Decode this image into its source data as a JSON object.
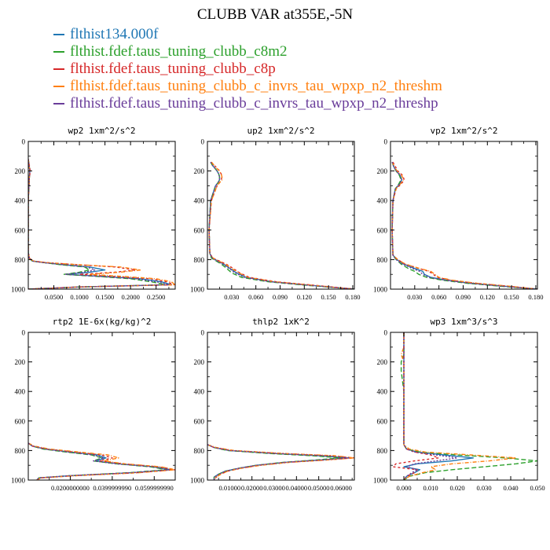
{
  "title": "CLUBB VAR at355E,-5N",
  "colors": [
    "#1f77b4",
    "#2ca02c",
    "#d62728",
    "#ff7f0e",
    "#6a3d9a"
  ],
  "legend": [
    "flthist134.000f",
    "flthist.fdef.taus_tuning_clubb_c8m2",
    "flthist.fdef.taus_tuning_clubb_c8p",
    "flthist.fdef.taus_tuning_clubb_c_invrs_tau_wpxp_n2_threshm",
    "flthist.fdef.taus_tuning_clubb_c_invrs_tau_wpxp_n2_threshp"
  ],
  "chart_data": [
    {
      "type": "line",
      "title": "wp2  1xm^2/s^2",
      "xlim": [
        0,
        0.2874
      ],
      "ylim": [
        0,
        1000
      ],
      "y_inverted": true,
      "xticks": [
        0.05,
        0.1,
        0.15,
        0.2,
        0.25
      ],
      "xtick_labels": [
        "0.0500",
        "0.1000",
        "0.1500",
        "0.2000",
        "0.2500"
      ],
      "yticks": [
        0,
        200,
        400,
        600,
        800,
        1000
      ],
      "ytick_labels": [
        "0",
        "200",
        "400",
        "600",
        "800",
        "1000"
      ],
      "y": [
        120,
        200,
        250,
        400,
        600,
        750,
        790,
        810,
        820,
        835,
        850,
        870,
        885,
        900,
        915,
        930,
        950,
        970,
        985,
        1000
      ],
      "series": [
        {
          "values": [
            0,
            0.003,
            0.002,
            0,
            0,
            0,
            0.002,
            0.008,
            0.03,
            0.07,
            0.12,
            0.15,
            0.12,
            0.075,
            0.15,
            0.22,
            0.26,
            0.28,
            0.1,
            0
          ]
        },
        {
          "values": [
            0,
            0.003,
            0.002,
            0,
            0,
            0,
            0.002,
            0.008,
            0.03,
            0.065,
            0.11,
            0.12,
            0.1,
            0.07,
            0.14,
            0.2,
            0.24,
            0.27,
            0.1,
            0
          ]
        },
        {
          "values": [
            0,
            0.004,
            0.002,
            0,
            0,
            0,
            0.002,
            0.01,
            0.035,
            0.1,
            0.17,
            0.21,
            0.17,
            0.1,
            0.17,
            0.24,
            0.27,
            0.287,
            0.1,
            0
          ]
        },
        {
          "values": [
            0,
            0.003,
            0.002,
            0,
            0,
            0,
            0.002,
            0.01,
            0.035,
            0.1,
            0.18,
            0.22,
            0.18,
            0.12,
            0.19,
            0.25,
            0.28,
            0.287,
            0.1,
            0
          ]
        },
        {
          "values": [
            0,
            0.003,
            0.002,
            0,
            0,
            0,
            0.002,
            0.008,
            0.03,
            0.07,
            0.115,
            0.13,
            0.11,
            0.072,
            0.145,
            0.21,
            0.25,
            0.275,
            0.1,
            0
          ]
        }
      ]
    },
    {
      "type": "line",
      "title": "up2  1xm^2/s^2",
      "xlim": [
        0,
        0.182
      ],
      "ylim": [
        0,
        1000
      ],
      "y_inverted": true,
      "xticks": [
        0.03,
        0.06,
        0.09,
        0.12,
        0.15,
        0.18
      ],
      "xtick_labels": [
        "0.030",
        "0.060",
        "0.090",
        "0.120",
        "0.150",
        "0.180"
      ],
      "yticks": [
        0,
        200,
        400,
        600,
        800,
        1000
      ],
      "ytick_labels": [
        "0",
        "200",
        "400",
        "600",
        "800",
        "1000"
      ],
      "y": [
        140,
        160,
        180,
        200,
        220,
        240,
        260,
        280,
        300,
        400,
        600,
        760,
        790,
        810,
        830,
        860,
        890,
        920,
        950,
        975,
        1000
      ],
      "series": [
        {
          "values": [
            0.004,
            0.006,
            0.009,
            0.012,
            0.014,
            0.015,
            0.015,
            0.013,
            0.01,
            0.004,
            0.002,
            0.003,
            0.006,
            0.013,
            0.02,
            0.028,
            0.036,
            0.048,
            0.08,
            0.13,
            0.182
          ]
        },
        {
          "values": [
            0.004,
            0.006,
            0.009,
            0.012,
            0.014,
            0.015,
            0.015,
            0.013,
            0.01,
            0.004,
            0.002,
            0.003,
            0.005,
            0.011,
            0.017,
            0.024,
            0.03,
            0.042,
            0.075,
            0.125,
            0.182
          ]
        },
        {
          "values": [
            0.005,
            0.008,
            0.012,
            0.015,
            0.017,
            0.018,
            0.017,
            0.015,
            0.012,
            0.005,
            0.002,
            0.003,
            0.007,
            0.015,
            0.023,
            0.032,
            0.04,
            0.052,
            0.085,
            0.135,
            0.182
          ]
        },
        {
          "values": [
            0.005,
            0.008,
            0.011,
            0.015,
            0.017,
            0.018,
            0.018,
            0.015,
            0.012,
            0.005,
            0.002,
            0.003,
            0.007,
            0.014,
            0.022,
            0.03,
            0.039,
            0.05,
            0.083,
            0.133,
            0.182
          ]
        },
        {
          "values": [
            0.004,
            0.006,
            0.009,
            0.012,
            0.014,
            0.015,
            0.015,
            0.013,
            0.01,
            0.004,
            0.002,
            0.003,
            0.006,
            0.012,
            0.019,
            0.027,
            0.034,
            0.046,
            0.078,
            0.128,
            0.182
          ]
        }
      ]
    },
    {
      "type": "line",
      "title": "vp2  1xm^2/s^2",
      "xlim": [
        0,
        0.182
      ],
      "ylim": [
        0,
        1000
      ],
      "y_inverted": true,
      "xticks": [
        0.03,
        0.06,
        0.09,
        0.12,
        0.15,
        0.18
      ],
      "xtick_labels": [
        "0.030",
        "0.060",
        "0.090",
        "0.120",
        "0.150",
        "0.180"
      ],
      "yticks": [
        0,
        200,
        400,
        600,
        800,
        1000
      ],
      "ytick_labels": [
        "0",
        "200",
        "400",
        "600",
        "800",
        "1000"
      ],
      "y": [
        140,
        170,
        200,
        230,
        260,
        290,
        320,
        400,
        600,
        770,
        800,
        830,
        860,
        880,
        900,
        920,
        940,
        960,
        980,
        1000
      ],
      "series": [
        {
          "values": [
            0.002,
            0.004,
            0.007,
            0.012,
            0.014,
            0.011,
            0.006,
            0.003,
            0.002,
            0.003,
            0.008,
            0.016,
            0.03,
            0.04,
            0.042,
            0.05,
            0.07,
            0.1,
            0.14,
            0.182
          ]
        },
        {
          "values": [
            0.002,
            0.004,
            0.007,
            0.011,
            0.013,
            0.01,
            0.006,
            0.003,
            0.002,
            0.003,
            0.007,
            0.013,
            0.022,
            0.03,
            0.035,
            0.045,
            0.065,
            0.095,
            0.135,
            0.182
          ]
        },
        {
          "values": [
            0.003,
            0.006,
            0.009,
            0.015,
            0.017,
            0.013,
            0.007,
            0.003,
            0.002,
            0.003,
            0.009,
            0.018,
            0.035,
            0.048,
            0.053,
            0.058,
            0.075,
            0.105,
            0.145,
            0.182
          ]
        },
        {
          "values": [
            0.002,
            0.005,
            0.008,
            0.014,
            0.016,
            0.012,
            0.007,
            0.003,
            0.002,
            0.003,
            0.009,
            0.018,
            0.036,
            0.05,
            0.055,
            0.06,
            0.077,
            0.107,
            0.147,
            0.182
          ]
        },
        {
          "values": [
            0.002,
            0.004,
            0.007,
            0.012,
            0.014,
            0.011,
            0.006,
            0.003,
            0.002,
            0.003,
            0.007,
            0.015,
            0.027,
            0.036,
            0.04,
            0.048,
            0.068,
            0.098,
            0.138,
            0.182
          ]
        }
      ]
    },
    {
      "type": "line",
      "title": "rtp2  1E-6x(kg/kg)^2",
      "xlim": [
        0,
        0.07
      ],
      "ylim": [
        0,
        1000
      ],
      "y_inverted": true,
      "xticks": [
        0.02,
        0.04,
        0.06
      ],
      "xtick_labels": [
        "0.0200000000",
        "0.0399999990",
        "0.0599999990"
      ],
      "yticks": [
        0,
        200,
        400,
        600,
        800,
        1000
      ],
      "ytick_labels": [
        "0",
        "200",
        "400",
        "600",
        "800",
        "1000"
      ],
      "y": [
        750,
        770,
        790,
        810,
        830,
        850,
        870,
        890,
        910,
        930,
        950,
        970,
        985,
        1000
      ],
      "series": [
        {
          "values": [
            0,
            0.002,
            0.008,
            0.02,
            0.033,
            0.037,
            0.032,
            0.043,
            0.06,
            0.068,
            0.05,
            0.02,
            0.005,
            0.004
          ]
        },
        {
          "values": [
            0,
            0.002,
            0.007,
            0.018,
            0.03,
            0.035,
            0.031,
            0.042,
            0.058,
            0.066,
            0.048,
            0.02,
            0.005,
            0.004
          ]
        },
        {
          "values": [
            0,
            0.002,
            0.009,
            0.022,
            0.035,
            0.04,
            0.034,
            0.045,
            0.062,
            0.07,
            0.052,
            0.022,
            0.006,
            0.004
          ]
        },
        {
          "values": [
            0,
            0.003,
            0.01,
            0.024,
            0.038,
            0.043,
            0.036,
            0.046,
            0.063,
            0.07,
            0.053,
            0.023,
            0.006,
            0.004
          ]
        },
        {
          "values": [
            0,
            0.002,
            0.008,
            0.019,
            0.031,
            0.036,
            0.031,
            0.042,
            0.059,
            0.067,
            0.049,
            0.02,
            0.005,
            0.004
          ]
        }
      ]
    },
    {
      "type": "line",
      "title": "thlp2  1xK^2",
      "xlim": [
        0,
        0.066
      ],
      "ylim": [
        0,
        1000
      ],
      "y_inverted": true,
      "xticks": [
        0.01,
        0.02,
        0.03,
        0.04,
        0.05,
        0.06
      ],
      "xtick_labels": [
        "0.01000",
        "0.02000",
        "0.03000",
        "0.04000",
        "0.05000",
        "0.06000"
      ],
      "yticks": [
        0,
        200,
        400,
        600,
        800,
        1000
      ],
      "ytick_labels": [
        "0",
        "200",
        "400",
        "600",
        "800",
        "1000"
      ],
      "y": [
        760,
        780,
        800,
        820,
        835,
        850,
        865,
        880,
        900,
        920,
        940,
        960,
        980,
        1000
      ],
      "series": [
        {
          "values": [
            0,
            0.003,
            0.01,
            0.03,
            0.05,
            0.063,
            0.05,
            0.035,
            0.022,
            0.014,
            0.008,
            0.005,
            0.003,
            0.003
          ]
        },
        {
          "values": [
            0,
            0.003,
            0.009,
            0.028,
            0.047,
            0.06,
            0.048,
            0.034,
            0.022,
            0.014,
            0.008,
            0.005,
            0.003,
            0.003
          ]
        },
        {
          "values": [
            0,
            0.003,
            0.011,
            0.033,
            0.055,
            0.066,
            0.052,
            0.036,
            0.023,
            0.015,
            0.009,
            0.006,
            0.004,
            0.003
          ]
        },
        {
          "values": [
            0,
            0.004,
            0.012,
            0.035,
            0.057,
            0.066,
            0.053,
            0.037,
            0.024,
            0.015,
            0.009,
            0.006,
            0.004,
            0.003
          ]
        },
        {
          "values": [
            0,
            0.003,
            0.01,
            0.031,
            0.052,
            0.064,
            0.05,
            0.035,
            0.022,
            0.014,
            0.008,
            0.005,
            0.003,
            0.003
          ]
        }
      ]
    },
    {
      "type": "line",
      "title": "wp3  1xm^3/s^3",
      "xlim": [
        -0.005,
        0.05
      ],
      "ylim": [
        0,
        1000
      ],
      "y_inverted": true,
      "xticks": [
        0,
        0.01,
        0.02,
        0.03,
        0.04,
        0.05
      ],
      "xtick_labels": [
        "0.000",
        "0.010",
        "0.020",
        "0.030",
        "0.040",
        "0.050"
      ],
      "yticks": [
        0,
        200,
        400,
        600,
        800,
        1000
      ],
      "ytick_labels": [
        "0",
        "200",
        "400",
        "600",
        "800",
        "1000"
      ],
      "y": [
        0,
        100,
        150,
        200,
        260,
        400,
        600,
        760,
        790,
        810,
        830,
        850,
        870,
        890,
        910,
        930,
        950,
        975,
        1000
      ],
      "series": [
        {
          "values": [
            0,
            0,
            0,
            0,
            0,
            0,
            0,
            0,
            0.001,
            0.005,
            0.015,
            0.026,
            0.018,
            0.005,
            0,
            0.006,
            0.004,
            0.001,
            0
          ]
        },
        {
          "values": [
            0,
            0,
            0,
            -0.001,
            -0.001,
            0,
            0,
            0,
            0.001,
            0.006,
            0.02,
            0.038,
            0.05,
            0.042,
            0.03,
            0.018,
            0.008,
            0.002,
            0
          ]
        },
        {
          "values": [
            0,
            0,
            0,
            0,
            0,
            0,
            0,
            0,
            0.001,
            0.004,
            0.01,
            0.013,
            0.004,
            -0.003,
            -0.004,
            0.005,
            0.004,
            0.001,
            0
          ]
        },
        {
          "values": [
            0,
            0,
            -0.001,
            0,
            0,
            0,
            0,
            0,
            0.002,
            0.008,
            0.025,
            0.042,
            0.032,
            0.018,
            0.01,
            0.012,
            0.007,
            0.002,
            0
          ]
        },
        {
          "values": [
            0,
            0,
            0,
            0,
            0,
            0,
            0,
            0,
            0.001,
            0.004,
            0.012,
            0.02,
            0.012,
            0.004,
            0.001,
            0.005,
            0.003,
            0.001,
            0
          ]
        }
      ]
    }
  ]
}
